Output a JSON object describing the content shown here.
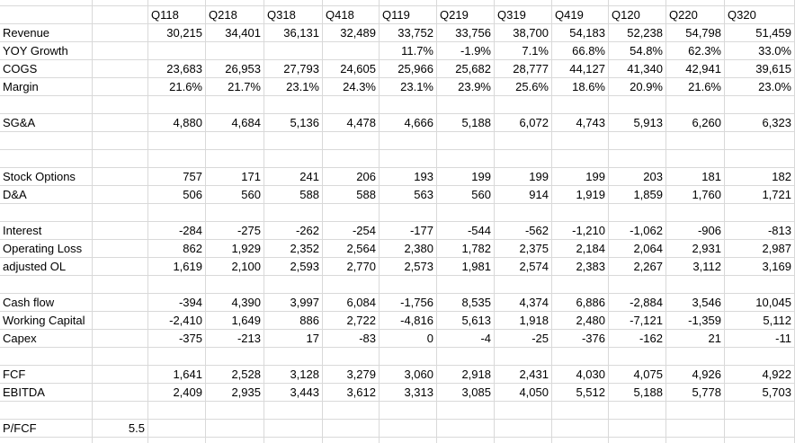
{
  "columns": [
    "Q118",
    "Q218",
    "Q318",
    "Q418",
    "Q119",
    "Q219",
    "Q319",
    "Q419",
    "Q120",
    "Q220",
    "Q320"
  ],
  "rows": [
    {
      "label": "Revenue",
      "cells": [
        "30,215",
        "34,401",
        "36,131",
        "32,489",
        "33,752",
        "33,756",
        "38,700",
        "54,183",
        "52,238",
        "54,798",
        "51,459"
      ]
    },
    {
      "label": "YOY Growth",
      "cells": [
        null,
        null,
        null,
        null,
        "11.7%",
        "-1.9%",
        "7.1%",
        "66.8%",
        "54.8%",
        "62.3%",
        "33.0%"
      ]
    },
    {
      "label": "COGS",
      "cells": [
        "23,683",
        "26,953",
        "27,793",
        "24,605",
        "25,966",
        "25,682",
        "28,777",
        "44,127",
        "41,340",
        "42,941",
        "39,615"
      ]
    },
    {
      "label": "Margin",
      "cells": [
        "21.6%",
        "21.7%",
        "23.1%",
        "24.3%",
        "23.1%",
        "23.9%",
        "25.6%",
        "18.6%",
        "20.9%",
        "21.6%",
        "23.0%"
      ]
    },
    {
      "label": "SG&A",
      "cells": [
        "4,880",
        "4,684",
        "5,136",
        "4,478",
        "4,666",
        "5,188",
        "6,072",
        "4,743",
        "5,913",
        "6,260",
        "6,323"
      ]
    },
    {
      "label": "Stock Options",
      "cells": [
        "757",
        "171",
        "241",
        "206",
        "193",
        "199",
        "199",
        "199",
        "203",
        "181",
        "182"
      ]
    },
    {
      "label": "D&A",
      "cells": [
        "506",
        "560",
        "588",
        "588",
        "563",
        "560",
        "914",
        "1,919",
        "1,859",
        "1,760",
        "1,721"
      ]
    },
    {
      "label": "Interest",
      "cells": [
        "-284",
        "-275",
        "-262",
        "-254",
        "-177",
        "-544",
        "-562",
        "-1,210",
        "-1,062",
        "-906",
        "-813"
      ]
    },
    {
      "label": "Operating Loss",
      "cells": [
        "862",
        "1,929",
        "2,352",
        "2,564",
        "2,380",
        "1,782",
        "2,375",
        "2,184",
        "2,064",
        "2,931",
        "2,987"
      ]
    },
    {
      "label": "adjusted OL",
      "cells": [
        "1,619",
        "2,100",
        "2,593",
        "2,770",
        "2,573",
        "1,981",
        "2,574",
        "2,383",
        "2,267",
        "3,112",
        "3,169"
      ]
    },
    {
      "label": "Cash flow",
      "cells": [
        "-394",
        "4,390",
        "3,997",
        "6,084",
        "-1,756",
        "8,535",
        "4,374",
        "6,886",
        "-2,884",
        "3,546",
        "10,045"
      ]
    },
    {
      "label": "Working Capital",
      "cells": [
        "-2,410",
        "1,649",
        "886",
        "2,722",
        "-4,816",
        "5,613",
        "1,918",
        "2,480",
        "-7,121",
        "-1,359",
        "5,112"
      ]
    },
    {
      "label": "Capex",
      "cells": [
        "-375",
        "-213",
        "17",
        "-83",
        "0",
        "-4",
        "-25",
        "-376",
        "-162",
        "21",
        "-11"
      ]
    },
    {
      "label": "FCF",
      "cells": [
        "1,641",
        "2,528",
        "3,128",
        "3,279",
        "3,060",
        "2,918",
        "2,431",
        "4,030",
        "4,075",
        "4,926",
        "4,922"
      ]
    },
    {
      "label": "EBITDA",
      "cells": [
        "2,409",
        "2,935",
        "3,443",
        "3,612",
        "3,313",
        "3,085",
        "4,050",
        "5,512",
        "5,188",
        "5,778",
        "5,703"
      ]
    },
    {
      "label": "P/FCF",
      "ratio": "5.5"
    }
  ]
}
